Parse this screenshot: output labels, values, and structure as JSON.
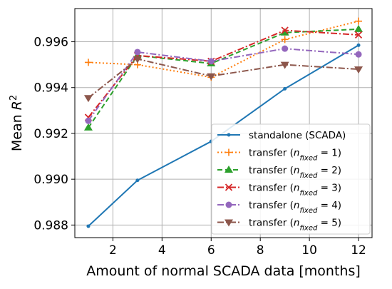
{
  "chart_data": {
    "type": "line",
    "xlabel": "Amount of normal SCADA data [months]",
    "ylabel_main": "Mean ",
    "ylabel_var": "R",
    "ylabel_sup": "2",
    "xlim": [
      0.45,
      12.55
    ],
    "ylim": [
      0.98745,
      0.99745
    ],
    "xticks": [
      2,
      4,
      6,
      8,
      10,
      12
    ],
    "xtick_labels": [
      "2",
      "4",
      "6",
      "8",
      "10",
      "12"
    ],
    "yticks": [
      0.988,
      0.99,
      0.992,
      0.994,
      0.996
    ],
    "ytick_labels": [
      "0.988",
      "0.990",
      "0.992",
      "0.994",
      "0.996"
    ],
    "grid": true,
    "legend_position": "lower-right",
    "x": [
      1,
      3,
      6,
      9,
      12
    ],
    "series": [
      {
        "name": "standalone (SCADA)",
        "legend_main": "standalone (SCADA)",
        "legend_var": "",
        "legend_sub": "",
        "legend_rest": "",
        "values": [
          0.98795,
          0.98995,
          0.99165,
          0.99395,
          0.99585
        ],
        "color": "#1f77b4",
        "dash": "",
        "marker": "dot"
      },
      {
        "name": "transfer (n_fixed = 1)",
        "legend_main": "transfer (",
        "legend_var": "n",
        "legend_sub": "fixed",
        "legend_rest": " = 1)",
        "values": [
          0.9951,
          0.995,
          0.99445,
          0.9961,
          0.9969
        ],
        "color": "#ff7f0e",
        "dash": "2,3",
        "marker": "plus"
      },
      {
        "name": "transfer (n_fixed = 2)",
        "legend_main": "transfer (",
        "legend_var": "n",
        "legend_sub": "fixed",
        "legend_rest": " = 2)",
        "values": [
          0.99225,
          0.9954,
          0.99505,
          0.9964,
          0.99655
        ],
        "color": "#2ca02c",
        "dash": "7,4",
        "marker": "triangle"
      },
      {
        "name": "transfer (n_fixed = 3)",
        "legend_main": "transfer (",
        "legend_var": "n",
        "legend_sub": "fixed",
        "legend_rest": " = 3)",
        "values": [
          0.9927,
          0.9954,
          0.99515,
          0.9965,
          0.9963
        ],
        "color": "#d62728",
        "dash": "9,3,2,3",
        "marker": "x"
      },
      {
        "name": "transfer (n_fixed = 4)",
        "legend_main": "transfer (",
        "legend_var": "n",
        "legend_sub": "fixed",
        "legend_rest": " = 4)",
        "values": [
          0.99255,
          0.99555,
          0.99515,
          0.9957,
          0.99545
        ],
        "color": "#9467bd",
        "dash": "9,3,2,3",
        "marker": "circle"
      },
      {
        "name": "transfer (n_fixed = 5)",
        "legend_main": "transfer (",
        "legend_var": "n",
        "legend_sub": "fixed",
        "legend_rest": " = 5)",
        "values": [
          0.99355,
          0.99525,
          0.9945,
          0.995,
          0.9948
        ],
        "color": "#8c564b",
        "dash": "9,3,2,3",
        "marker": "triangle-down"
      }
    ]
  }
}
